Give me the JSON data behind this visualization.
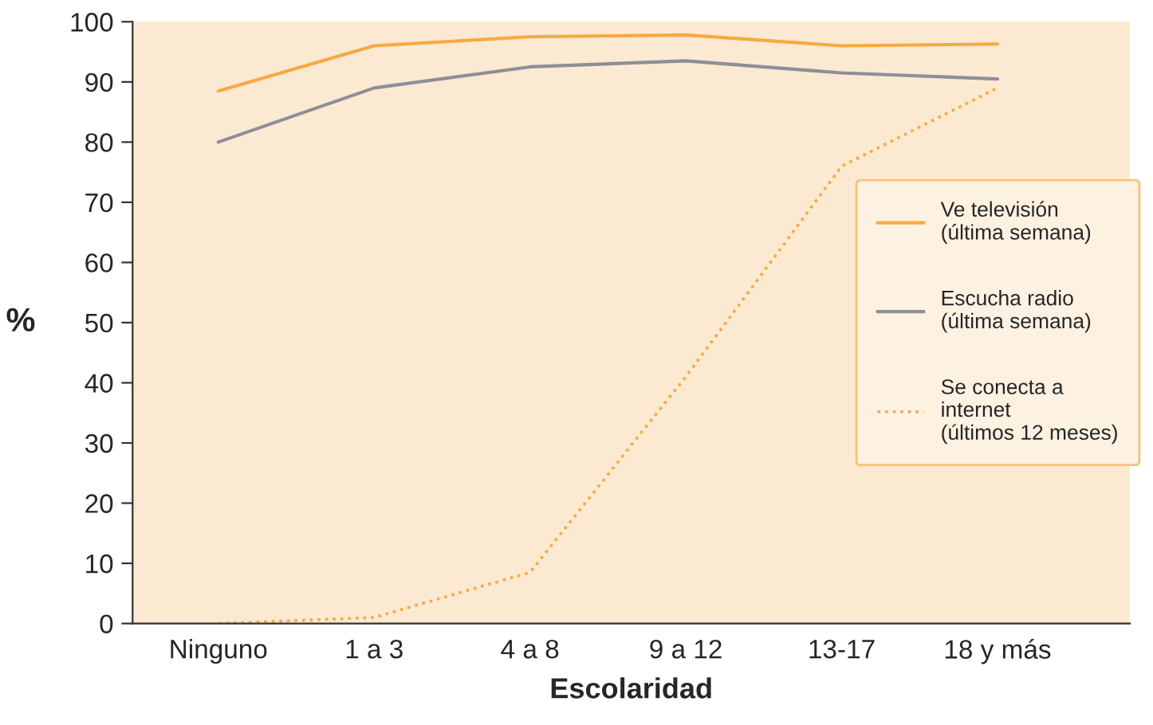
{
  "chart_data": {
    "type": "line",
    "xlabel": "Escolaridad",
    "ylabel": "%",
    "categories": [
      "Ninguno",
      "1 a 3",
      "4 a 8",
      "9 a 12",
      "13-17",
      "18 y más"
    ],
    "series": [
      {
        "name": "Ve televisión\n(última semana)",
        "color": "#f7a941",
        "line_style": "solid",
        "values": [
          88.5,
          96,
          97.5,
          97.8,
          96,
          96.3
        ]
      },
      {
        "name": "Escucha radio\n(última semana)",
        "color": "#8e8e98",
        "line_style": "solid",
        "values": [
          80,
          89,
          92.5,
          93.5,
          91.5,
          90.5
        ]
      },
      {
        "name": "Se conecta a\ninternet\n(últimos 12 meses)",
        "color": "#f7a941",
        "line_style": "dotted",
        "values": [
          0,
          1,
          8.5,
          41,
          76,
          89
        ]
      }
    ],
    "ylim": [
      0,
      100
    ],
    "yticks": [
      0,
      10,
      20,
      30,
      40,
      50,
      60,
      70,
      80,
      90,
      100
    ],
    "grid": false,
    "legend": "right",
    "marker": "none"
  }
}
